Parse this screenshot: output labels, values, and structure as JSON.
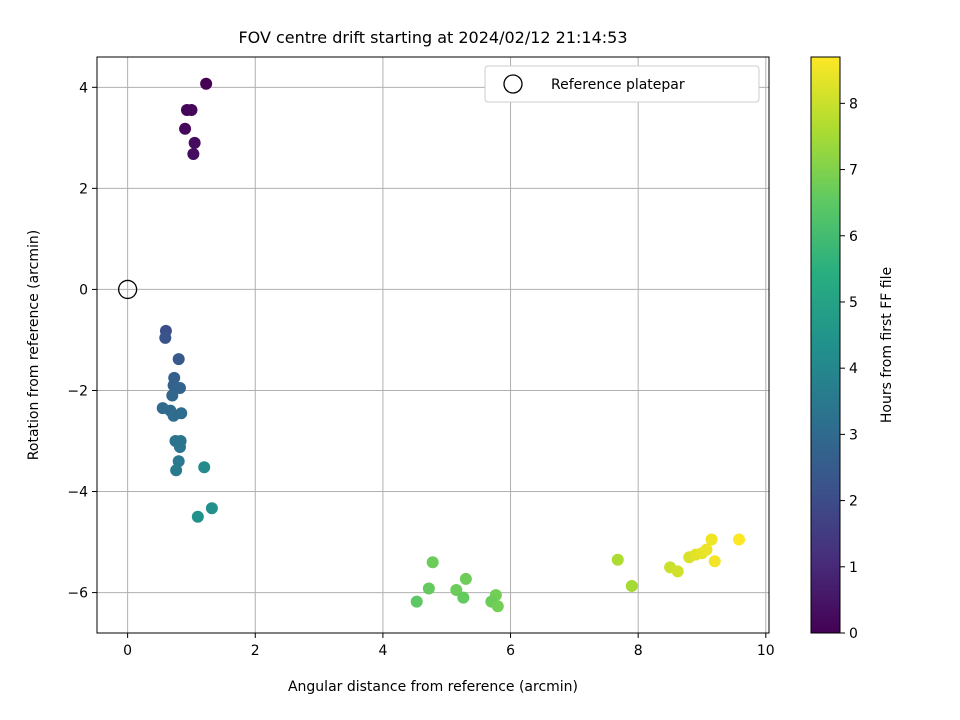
{
  "chart_data": {
    "type": "scatter",
    "title": "FOV centre drift starting at 2024/02/12 21:14:53",
    "xlabel": "Angular distance from reference (arcmin)",
    "ylabel": "Rotation from reference (arcmin)",
    "xlim": [
      -0.48,
      10.05
    ],
    "ylim": [
      -6.8,
      4.6
    ],
    "xticks": [
      0,
      2,
      4,
      6,
      8,
      10
    ],
    "yticks": [
      -6,
      -4,
      -2,
      0,
      2,
      4
    ],
    "grid": true,
    "legend": {
      "position": "top-right",
      "entries": [
        "Reference platepar"
      ]
    },
    "reference_point": {
      "x": 0,
      "y": 0
    },
    "colorbar": {
      "label": "Hours from first FF file",
      "colormap": "viridis",
      "range": [
        0,
        8.7
      ],
      "ticks": [
        0,
        1,
        2,
        3,
        4,
        5,
        6,
        7,
        8
      ]
    },
    "series": [
      {
        "points": [
          {
            "x": 1.23,
            "y": 4.07,
            "c": 0.0
          },
          {
            "x": 0.93,
            "y": 3.55,
            "c": 0.1
          },
          {
            "x": 1.0,
            "y": 3.55,
            "c": 0.15
          },
          {
            "x": 0.9,
            "y": 3.18,
            "c": 0.2
          },
          {
            "x": 1.05,
            "y": 2.9,
            "c": 0.25
          },
          {
            "x": 1.03,
            "y": 2.68,
            "c": 0.3
          },
          {
            "x": 0.6,
            "y": -0.82,
            "c": 2.1
          },
          {
            "x": 0.59,
            "y": -0.96,
            "c": 2.2
          },
          {
            "x": 0.8,
            "y": -1.38,
            "c": 2.4
          },
          {
            "x": 0.73,
            "y": -1.75,
            "c": 2.6
          },
          {
            "x": 0.72,
            "y": -1.9,
            "c": 2.75
          },
          {
            "x": 0.82,
            "y": -1.95,
            "c": 2.8
          },
          {
            "x": 0.7,
            "y": -2.1,
            "c": 2.9
          },
          {
            "x": 0.55,
            "y": -2.35,
            "c": 3.0
          },
          {
            "x": 0.67,
            "y": -2.4,
            "c": 3.0
          },
          {
            "x": 0.72,
            "y": -2.5,
            "c": 3.05
          },
          {
            "x": 0.84,
            "y": -2.45,
            "c": 3.1
          },
          {
            "x": 0.75,
            "y": -3.0,
            "c": 3.3
          },
          {
            "x": 0.83,
            "y": -3.0,
            "c": 3.35
          },
          {
            "x": 0.82,
            "y": -3.12,
            "c": 3.4
          },
          {
            "x": 0.8,
            "y": -3.4,
            "c": 3.5
          },
          {
            "x": 0.76,
            "y": -3.58,
            "c": 3.55
          },
          {
            "x": 1.2,
            "y": -3.52,
            "c": 4.1
          },
          {
            "x": 1.32,
            "y": -4.33,
            "c": 4.3
          },
          {
            "x": 1.1,
            "y": -4.5,
            "c": 4.35
          },
          {
            "x": 4.78,
            "y": -5.4,
            "c": 6.7
          },
          {
            "x": 4.72,
            "y": -5.92,
            "c": 6.6
          },
          {
            "x": 4.53,
            "y": -6.18,
            "c": 6.5
          },
          {
            "x": 5.15,
            "y": -5.95,
            "c": 6.7
          },
          {
            "x": 5.3,
            "y": -5.73,
            "c": 6.75
          },
          {
            "x": 5.26,
            "y": -6.1,
            "c": 6.6
          },
          {
            "x": 5.77,
            "y": -6.05,
            "c": 6.8
          },
          {
            "x": 5.7,
            "y": -6.18,
            "c": 6.7
          },
          {
            "x": 5.8,
            "y": -6.27,
            "c": 6.8
          },
          {
            "x": 7.68,
            "y": -5.35,
            "c": 7.6
          },
          {
            "x": 7.9,
            "y": -5.87,
            "c": 7.5
          },
          {
            "x": 8.5,
            "y": -5.5,
            "c": 8.0
          },
          {
            "x": 8.62,
            "y": -5.58,
            "c": 8.1
          },
          {
            "x": 8.8,
            "y": -5.3,
            "c": 8.2
          },
          {
            "x": 8.9,
            "y": -5.25,
            "c": 8.3
          },
          {
            "x": 9.0,
            "y": -5.22,
            "c": 8.4
          },
          {
            "x": 9.07,
            "y": -5.15,
            "c": 8.45
          },
          {
            "x": 9.15,
            "y": -4.95,
            "c": 8.5
          },
          {
            "x": 9.2,
            "y": -5.38,
            "c": 8.55
          },
          {
            "x": 9.58,
            "y": -4.95,
            "c": 8.7
          }
        ]
      }
    ]
  }
}
